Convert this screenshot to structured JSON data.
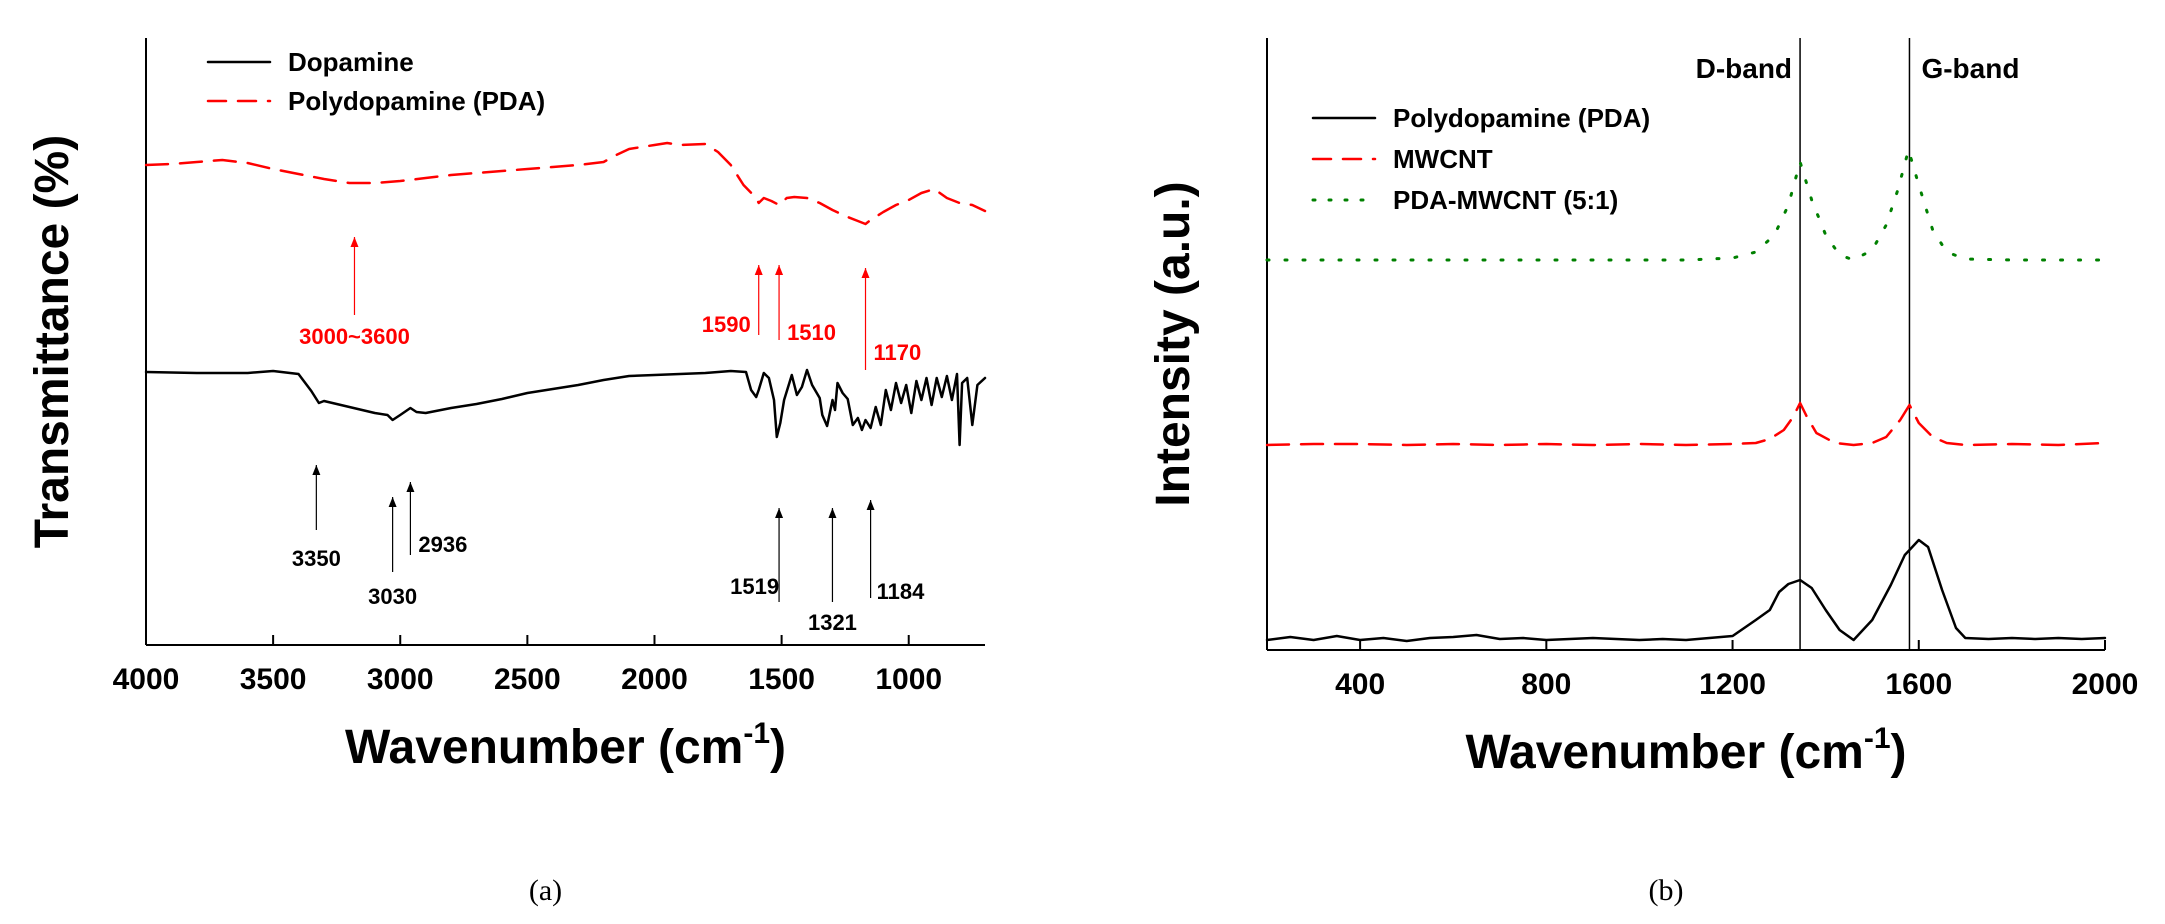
{
  "chart_data": [
    {
      "type": "line",
      "caption": "(a)",
      "xlabel": "Wavenumber (cm",
      "xlabel_sup": "-1",
      "xlabel_close": ")",
      "ylabel": "Transmittance (%)",
      "xlim": [
        4000,
        700
      ],
      "xticks": [
        "4000",
        "3500",
        "3000",
        "2500",
        "2000",
        "1500",
        "1000"
      ],
      "yticks_shown": false,
      "legend": {
        "placement": "top-left",
        "entries": [
          {
            "label": "Dopamine",
            "color": "#000000",
            "style": "solid"
          },
          {
            "label": "Polydopamine (PDA)",
            "color": "#ff0000",
            "style": "dashed"
          }
        ]
      },
      "series": [
        {
          "name": "Dopamine",
          "color": "#000000",
          "style": "solid",
          "points": [
            [
              4000,
              73
            ],
            [
              3800,
              72
            ],
            [
              3600,
              72
            ],
            [
              3500,
              74
            ],
            [
              3400,
              71
            ],
            [
              3350,
              54
            ],
            [
              3320,
              42
            ],
            [
              3300,
              44
            ],
            [
              3200,
              38
            ],
            [
              3100,
              32
            ],
            [
              3050,
              30
            ],
            [
              3030,
              25
            ],
            [
              3000,
              30
            ],
            [
              2960,
              37
            ],
            [
              2936,
              33
            ],
            [
              2900,
              32
            ],
            [
              2800,
              37
            ],
            [
              2700,
              41
            ],
            [
              2600,
              46
            ],
            [
              2500,
              52
            ],
            [
              2400,
              56
            ],
            [
              2300,
              60
            ],
            [
              2200,
              65
            ],
            [
              2100,
              69
            ],
            [
              2000,
              70
            ],
            [
              1900,
              71
            ],
            [
              1800,
              72
            ],
            [
              1700,
              74
            ],
            [
              1640,
              73
            ],
            [
              1620,
              55
            ],
            [
              1600,
              48
            ],
            [
              1590,
              55
            ],
            [
              1570,
              72
            ],
            [
              1550,
              67
            ],
            [
              1530,
              45
            ],
            [
              1519,
              8
            ],
            [
              1505,
              22
            ],
            [
              1490,
              45
            ],
            [
              1460,
              70
            ],
            [
              1440,
              50
            ],
            [
              1420,
              58
            ],
            [
              1400,
              75
            ],
            [
              1380,
              60
            ],
            [
              1350,
              47
            ],
            [
              1340,
              30
            ],
            [
              1321,
              19
            ],
            [
              1300,
              45
            ],
            [
              1290,
              35
            ],
            [
              1280,
              62
            ],
            [
              1260,
              52
            ],
            [
              1240,
              46
            ],
            [
              1220,
              20
            ],
            [
              1200,
              27
            ],
            [
              1184,
              15
            ],
            [
              1170,
              25
            ],
            [
              1150,
              17
            ],
            [
              1130,
              38
            ],
            [
              1110,
              20
            ],
            [
              1090,
              55
            ],
            [
              1070,
              35
            ],
            [
              1050,
              62
            ],
            [
              1030,
              42
            ],
            [
              1010,
              60
            ],
            [
              990,
              32
            ],
            [
              970,
              64
            ],
            [
              950,
              45
            ],
            [
              930,
              67
            ],
            [
              910,
              40
            ],
            [
              890,
              67
            ],
            [
              870,
              48
            ],
            [
              850,
              69
            ],
            [
              830,
              45
            ],
            [
              810,
              71
            ],
            [
              800,
              0
            ],
            [
              790,
              62
            ],
            [
              770,
              67
            ],
            [
              750,
              20
            ],
            [
              730,
              60
            ],
            [
              700,
              67
            ]
          ],
          "baseline_peaks": [
            {
              "label": "3350",
              "x": 3330
            },
            {
              "label": "3030",
              "x": 3030
            },
            {
              "label": "2936",
              "x": 2960
            },
            {
              "label": "1519",
              "x": 1510
            },
            {
              "label": "1321",
              "x": 1300
            },
            {
              "label": "1184",
              "x": 1150
            }
          ]
        },
        {
          "name": "Polydopamine (PDA)",
          "color": "#ff0000",
          "style": "dashed",
          "points": [
            [
              4000,
              150
            ],
            [
              3900,
              151
            ],
            [
              3800,
              153
            ],
            [
              3700,
              155
            ],
            [
              3600,
              152
            ],
            [
              3500,
              146
            ],
            [
              3400,
              141
            ],
            [
              3300,
              136
            ],
            [
              3200,
              132
            ],
            [
              3100,
              132
            ],
            [
              3000,
              134
            ],
            [
              2900,
              137
            ],
            [
              2800,
              140
            ],
            [
              2700,
              142
            ],
            [
              2600,
              144
            ],
            [
              2500,
              146
            ],
            [
              2400,
              148
            ],
            [
              2300,
              150
            ],
            [
              2200,
              153
            ],
            [
              2150,
              160
            ],
            [
              2100,
              166
            ],
            [
              2000,
              170
            ],
            [
              1950,
              172
            ],
            [
              1900,
              170
            ],
            [
              1800,
              171
            ],
            [
              1750,
              163
            ],
            [
              1700,
              150
            ],
            [
              1650,
              130
            ],
            [
              1600,
              117
            ],
            [
              1590,
              112
            ],
            [
              1570,
              117
            ],
            [
              1540,
              114
            ],
            [
              1510,
              110
            ],
            [
              1480,
              117
            ],
            [
              1450,
              118
            ],
            [
              1400,
              117
            ],
            [
              1350,
              112
            ],
            [
              1300,
              105
            ],
            [
              1250,
              99
            ],
            [
              1200,
              94
            ],
            [
              1170,
              91
            ],
            [
              1150,
              95
            ],
            [
              1100,
              103
            ],
            [
              1050,
              110
            ],
            [
              1000,
              115
            ],
            [
              950,
              122
            ],
            [
              900,
              126
            ],
            [
              850,
              117
            ],
            [
              800,
              112
            ],
            [
              750,
              110
            ],
            [
              700,
              104
            ]
          ],
          "annotations": [
            {
              "label": "3000~3600",
              "x": 3180
            },
            {
              "label": "1590",
              "x": 1590
            },
            {
              "label": "1510",
              "x": 1510
            },
            {
              "label": "1170",
              "x": 1170
            }
          ]
        }
      ]
    },
    {
      "type": "line",
      "caption": "(b)",
      "xlabel": "Wavenumber (cm",
      "xlabel_sup": "-1",
      "xlabel_close": ")",
      "ylabel": "Intensity (a.u.)",
      "xlim": [
        200,
        2000
      ],
      "xticks": [
        "400",
        "800",
        "1200",
        "1600",
        "2000"
      ],
      "yticks_shown": false,
      "vertical_lines": [
        {
          "label": "D-band",
          "x": 1345
        },
        {
          "label": "G-band",
          "x": 1580
        }
      ],
      "legend": {
        "placement": "top-left",
        "entries": [
          {
            "label": "Polydopamine (PDA)",
            "color": "#000000",
            "style": "solid"
          },
          {
            "label": "MWCNT",
            "color": "#ff0000",
            "style": "dashed"
          },
          {
            "label": "PDA-MWCNT (5:1)",
            "color": "#008000",
            "style": "dotted"
          }
        ]
      },
      "series": [
        {
          "name": "Polydopamine (PDA)",
          "color": "#000000",
          "style": "solid",
          "points": [
            [
              200,
              10
            ],
            [
              250,
              13
            ],
            [
              300,
              10
            ],
            [
              350,
              14
            ],
            [
              400,
              10
            ],
            [
              450,
              12
            ],
            [
              500,
              9
            ],
            [
              550,
              12
            ],
            [
              600,
              13
            ],
            [
              650,
              15
            ],
            [
              700,
              11
            ],
            [
              750,
              12
            ],
            [
              800,
              10
            ],
            [
              850,
              11
            ],
            [
              900,
              12
            ],
            [
              950,
              11
            ],
            [
              1000,
              10
            ],
            [
              1050,
              11
            ],
            [
              1100,
              10
            ],
            [
              1150,
              12
            ],
            [
              1200,
              14
            ],
            [
              1250,
              30
            ],
            [
              1280,
              40
            ],
            [
              1300,
              58
            ],
            [
              1320,
              66
            ],
            [
              1345,
              70
            ],
            [
              1370,
              62
            ],
            [
              1400,
              40
            ],
            [
              1430,
              20
            ],
            [
              1460,
              10
            ],
            [
              1500,
              30
            ],
            [
              1540,
              65
            ],
            [
              1570,
              95
            ],
            [
              1600,
              110
            ],
            [
              1620,
              103
            ],
            [
              1650,
              60
            ],
            [
              1680,
              22
            ],
            [
              1700,
              12
            ],
            [
              1750,
              11
            ],
            [
              1800,
              12
            ],
            [
              1850,
              11
            ],
            [
              1900,
              12
            ],
            [
              1950,
              11
            ],
            [
              2000,
              12
            ]
          ]
        },
        {
          "name": "MWCNT",
          "color": "#ff0000",
          "style": "dashed",
          "points": [
            [
              200,
              170
            ],
            [
              300,
              171
            ],
            [
              400,
              171
            ],
            [
              500,
              170
            ],
            [
              600,
              171
            ],
            [
              700,
              170
            ],
            [
              800,
              171
            ],
            [
              900,
              170
            ],
            [
              1000,
              171
            ],
            [
              1100,
              170
            ],
            [
              1200,
              171
            ],
            [
              1250,
              172
            ],
            [
              1280,
              176
            ],
            [
              1310,
              185
            ],
            [
              1330,
              198
            ],
            [
              1345,
              212
            ],
            [
              1360,
              198
            ],
            [
              1380,
              182
            ],
            [
              1420,
              172
            ],
            [
              1460,
              170
            ],
            [
              1500,
              172
            ],
            [
              1530,
              178
            ],
            [
              1560,
              195
            ],
            [
              1580,
              210
            ],
            [
              1600,
              192
            ],
            [
              1630,
              178
            ],
            [
              1660,
              172
            ],
            [
              1700,
              170
            ],
            [
              1800,
              171
            ],
            [
              1900,
              170
            ],
            [
              2000,
              172
            ]
          ]
        },
        {
          "name": "PDA-MWCNT (5:1)",
          "color": "#008000",
          "style": "dotted",
          "points": [
            [
              200,
              340
            ],
            [
              300,
              340
            ],
            [
              400,
              340
            ],
            [
              500,
              340
            ],
            [
              600,
              340
            ],
            [
              700,
              340
            ],
            [
              800,
              340
            ],
            [
              900,
              340
            ],
            [
              1000,
              340
            ],
            [
              1100,
              340
            ],
            [
              1200,
              342
            ],
            [
              1250,
              348
            ],
            [
              1290,
              365
            ],
            [
              1320,
              395
            ],
            [
              1345,
              438
            ],
            [
              1370,
              400
            ],
            [
              1400,
              365
            ],
            [
              1430,
              345
            ],
            [
              1460,
              340
            ],
            [
              1500,
              350
            ],
            [
              1530,
              375
            ],
            [
              1555,
              410
            ],
            [
              1578,
              450
            ],
            [
              1600,
              415
            ],
            [
              1630,
              370
            ],
            [
              1660,
              348
            ],
            [
              1700,
              341
            ],
            [
              1800,
              340
            ],
            [
              1900,
              340
            ],
            [
              2000,
              340
            ]
          ]
        }
      ]
    }
  ]
}
